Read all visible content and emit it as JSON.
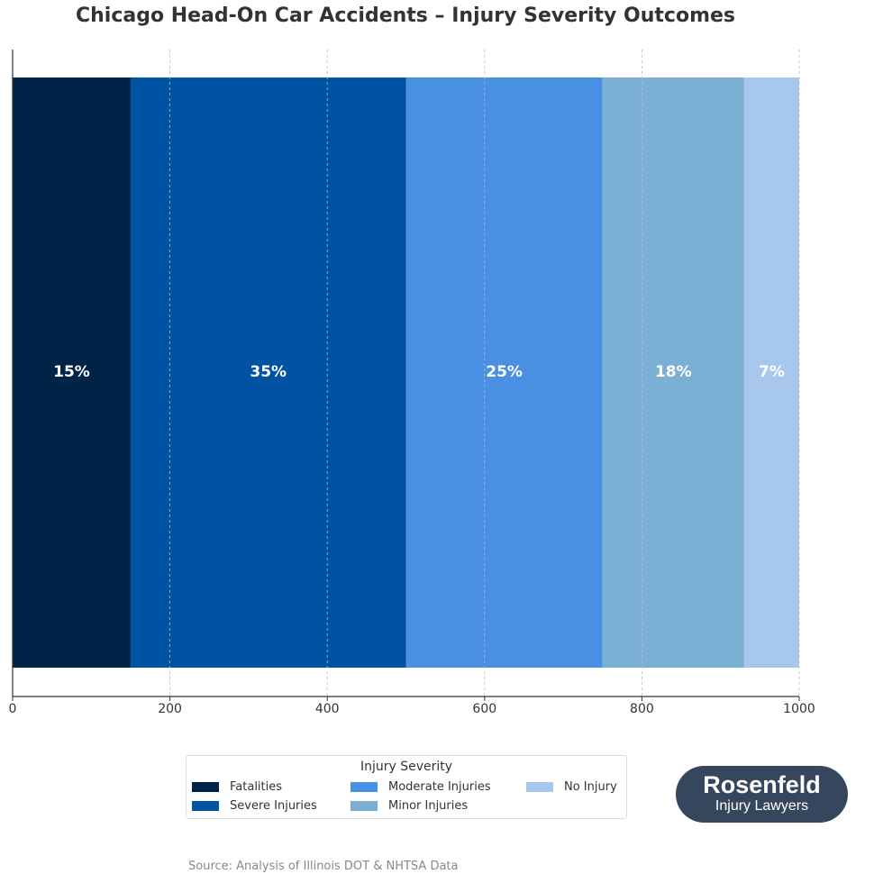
{
  "chart_data": {
    "type": "bar",
    "orientation": "horizontal",
    "stacked": true,
    "title": "Chicago Head-On Car Accidents – Injury Severity Outcomes",
    "xlim": [
      0,
      1000
    ],
    "xticks": [
      "0",
      "200",
      "400",
      "600",
      "800",
      "1000"
    ],
    "grid": "x dashed",
    "series": [
      {
        "name": "Fatalities",
        "value": 150,
        "label": "15%",
        "color": "#002448"
      },
      {
        "name": "Severe Injuries",
        "value": 350,
        "label": "35%",
        "color": "#0052a3"
      },
      {
        "name": "Moderate Injuries",
        "value": 250,
        "label": "25%",
        "color": "#4a90e2"
      },
      {
        "name": "Minor Injuries",
        "value": 180,
        "label": "18%",
        "color": "#7bafd4"
      },
      {
        "name": "No Injury",
        "value": 70,
        "label": "7%",
        "color": "#a8c7ed"
      }
    ],
    "legend": {
      "title": "Injury Severity",
      "placement": "bottom-center"
    }
  },
  "logo": {
    "line1": "Rosenfeld",
    "line2": "Injury Lawyers"
  },
  "source": "Source: Analysis of Illinois DOT & NHTSA Data"
}
